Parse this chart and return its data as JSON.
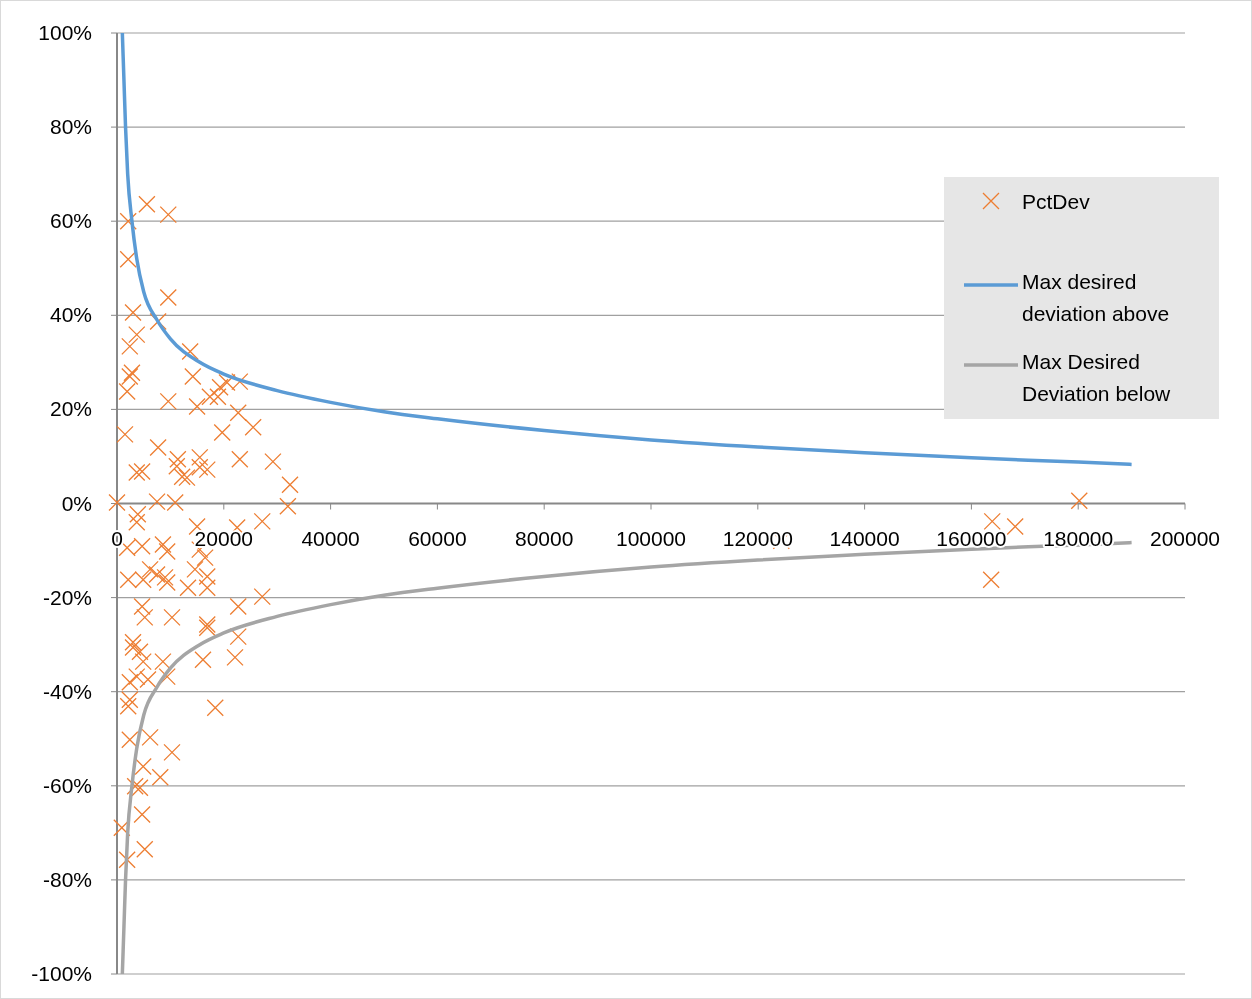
{
  "chart_data": {
    "type": "scatter",
    "xlim": [
      0,
      200000
    ],
    "xticks": [
      0,
      20000,
      40000,
      60000,
      80000,
      100000,
      120000,
      140000,
      160000,
      180000,
      200000
    ],
    "ylim": [
      -100,
      100
    ],
    "yticks": [
      {
        "value": -100,
        "label": "-100%"
      },
      {
        "value": -80,
        "label": "-80%"
      },
      {
        "value": -60,
        "label": "-60%"
      },
      {
        "value": -40,
        "label": "-40%"
      },
      {
        "value": -20,
        "label": "-20%"
      },
      {
        "value": 0,
        "label": "0%"
      },
      {
        "value": 20,
        "label": "20%"
      },
      {
        "value": 40,
        "label": "40%"
      },
      {
        "value": 60,
        "label": "60%"
      },
      {
        "value": 80,
        "label": "80%"
      },
      {
        "value": 100,
        "label": "100%"
      }
    ],
    "grid": "y",
    "legend": "right",
    "series": [
      {
        "name": "PctDev",
        "marker": "cross",
        "color": "#ed7d31",
        "x": [
          5600,
          2100,
          9600,
          2100,
          9600,
          3000,
          7700,
          3700,
          2400,
          13700,
          2800,
          2400,
          1900,
          14200,
          9600,
          15000,
          17400,
          19300,
          20600,
          23000,
          18900,
          22700,
          19700,
          25500,
          1500,
          7700,
          11400,
          15500,
          23000,
          29200,
          3700,
          4700,
          12200,
          15500,
          16900,
          32400,
          11200,
          13100,
          0,
          7500,
          10900,
          32000,
          124400,
          163900,
          168200,
          180200,
          163700,
          3900,
          3700,
          15000,
          22500,
          27200,
          1900,
          4700,
          8600,
          9400,
          15500,
          16500,
          2100,
          4900,
          7500,
          9000,
          9400,
          13300,
          14600,
          16900,
          16900,
          6200,
          4700,
          22700,
          27200,
          5200,
          10300,
          16900,
          16900,
          22700,
          3000,
          4300,
          3000,
          4900,
          8600,
          16100,
          22100,
          3700,
          5800,
          9400,
          2400,
          2400,
          2100,
          18400,
          2400,
          6200,
          10300,
          4900,
          3400,
          8100,
          4300,
          4700,
          900,
          5200,
          1900
        ],
        "values": [
          63.6,
          60,
          61.4,
          51.9,
          43.8,
          40.6,
          38.7,
          35.9,
          33.4,
          32.3,
          27.8,
          27,
          23.8,
          27,
          21.7,
          20.6,
          22.7,
          24.7,
          25.7,
          25.9,
          22.7,
          19.3,
          15.1,
          16.2,
          14.7,
          11.9,
          9.4,
          9.8,
          9.4,
          8.9,
          6.6,
          6.8,
          5.7,
          7.7,
          7.2,
          4,
          7.9,
          5.5,
          0.2,
          0.4,
          0.2,
          -0.6,
          -7.9,
          -3.8,
          -4.9,
          0.6,
          -16.2,
          -2.3,
          -4,
          -4.9,
          -5.1,
          -3.8,
          -9.4,
          -9.1,
          -8.7,
          -10.2,
          -9.8,
          -11.5,
          -16.2,
          -16.2,
          -15.1,
          -15.7,
          -16.8,
          -17.9,
          -14,
          -17.9,
          -15.5,
          -14,
          -21.9,
          -21.9,
          -19.8,
          -24.2,
          -24.2,
          -25.7,
          -26.4,
          -28.3,
          -30.6,
          -31.5,
          -29.5,
          -33.6,
          -33.6,
          -33.2,
          -32.7,
          -36.8,
          -37.4,
          -36.8,
          -38,
          -41.7,
          -43.1,
          -43.4,
          -50.2,
          -49.7,
          -52.9,
          -55.9,
          -60.1,
          -58.2,
          -60.4,
          -66.1,
          -68.9,
          -73.5,
          -75.7
        ]
      },
      {
        "name": "Max desired deviation above",
        "type": "line",
        "marker": "none",
        "color": "#5b9bd5",
        "x": [
          1000,
          1300,
          1600,
          2000,
          2800,
          3700,
          5000,
          7500,
          10000,
          15500,
          20000,
          30000,
          40000,
          50000,
          60000,
          80000,
          100000,
          120000,
          140000,
          160000,
          180000,
          190000
        ],
        "values": [
          100,
          90,
          80,
          70,
          60,
          52,
          45,
          39,
          35,
          30,
          27.5,
          24,
          21.5,
          19.5,
          18,
          15.5,
          13.5,
          12,
          10.8,
          9.7,
          8.8,
          8.3
        ]
      },
      {
        "name": "Max Desired Deviation below",
        "type": "line",
        "marker": "none",
        "color": "#a5a5a5",
        "x": [
          1000,
          1300,
          1600,
          2000,
          2800,
          3700,
          5000,
          7500,
          10000,
          15500,
          20000,
          30000,
          40000,
          50000,
          60000,
          80000,
          100000,
          120000,
          140000,
          160000,
          180000,
          190000
        ],
        "values": [
          -100,
          -90,
          -80,
          -70,
          -60,
          -52,
          -45,
          -39,
          -35,
          -30,
          -27.5,
          -24,
          -21.5,
          -19.5,
          -18,
          -15.5,
          -13.5,
          -12,
          -10.8,
          -9.7,
          -8.8,
          -8.3
        ]
      }
    ]
  }
}
